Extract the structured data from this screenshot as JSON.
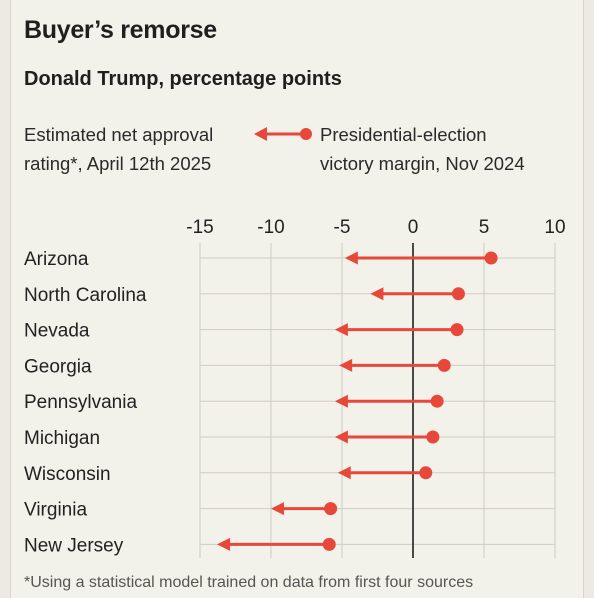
{
  "header": {
    "title": "Buyer’s remorse",
    "subtitle": "Donald Trump, percentage points"
  },
  "legend": {
    "left_line1": "Estimated net approval",
    "left_line2": "rating*, April 12th 2025",
    "right_line1": "Presidential-election",
    "right_line2": "victory margin, Nov 2024"
  },
  "footnote": "*Using a statistical model trained on data from first four sources",
  "colors": {
    "accent": "#e8483a",
    "grid": "#cfcdc3",
    "zero": "#1f1f1f"
  },
  "chart_data": {
    "type": "arrow-dot",
    "title": "Buyer’s remorse",
    "subtitle": "Donald Trump, percentage points",
    "xlim": [
      -15,
      10
    ],
    "ticks": [
      -15,
      -10,
      -5,
      0,
      5,
      10
    ],
    "tick_labels": [
      "-15",
      "-10",
      "-5",
      "0",
      "5",
      "10"
    ],
    "categories": [
      "Arizona",
      "North Carolina",
      "Nevada",
      "Georgia",
      "Pennsylvania",
      "Michigan",
      "Wisconsin",
      "Virginia",
      "New Jersey"
    ],
    "series": [
      {
        "name": "Presidential-election victory margin, Nov 2024",
        "values": [
          5.5,
          3.2,
          3.1,
          2.2,
          1.7,
          1.4,
          0.9,
          -5.8,
          -5.9
        ]
      },
      {
        "name": "Estimated net approval rating*, April 12th 2025",
        "values": [
          -4.8,
          -3.0,
          -5.5,
          -5.2,
          -5.5,
          -5.5,
          -5.3,
          -10.0,
          -13.8
        ]
      }
    ]
  }
}
